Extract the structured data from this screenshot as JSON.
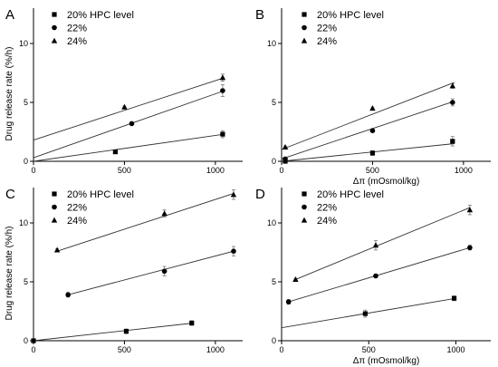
{
  "chart_data": [
    {
      "type": "scatter",
      "panel": "A",
      "xlabel": "",
      "ylabel": "Drug release rate (%/h)",
      "xlim": [
        0,
        1150
      ],
      "ylim": [
        0,
        13
      ],
      "xticks": [
        0,
        500,
        1000
      ],
      "yticks": [
        0,
        5,
        10
      ],
      "legend": "top-left",
      "series": [
        {
          "name": "20% HPC level",
          "marker": "square",
          "x": [
            450,
            1040
          ],
          "y": [
            0.8,
            2.3
          ],
          "err": [
            0.1,
            0.3
          ],
          "fit": [
            0,
            0,
            1050,
            2.3
          ]
        },
        {
          "name": "22%",
          "marker": "circle",
          "x": [
            540,
            1040
          ],
          "y": [
            3.2,
            6.0
          ],
          "err": [
            0.1,
            0.5
          ],
          "fit": [
            0,
            0.3,
            1050,
            6.0
          ]
        },
        {
          "name": "24%",
          "marker": "triangle",
          "x": [
            500,
            1040
          ],
          "y": [
            4.6,
            7.1
          ],
          "err": [
            0.1,
            0.3
          ],
          "fit": [
            0,
            1.8,
            1050,
            7.1
          ]
        }
      ]
    },
    {
      "type": "scatter",
      "panel": "B",
      "xlabel": "Δπ (mOsmol/kg)",
      "ylabel": "",
      "xlim": [
        0,
        1150
      ],
      "ylim": [
        0,
        13
      ],
      "xticks": [
        0,
        500,
        1000
      ],
      "yticks": [
        0,
        5,
        10
      ],
      "legend": "top-left",
      "series": [
        {
          "name": "20% HPC level",
          "marker": "square",
          "x": [
            20,
            500,
            940
          ],
          "y": [
            0.0,
            0.7,
            1.7
          ],
          "err": [
            0.05,
            0.2,
            0.4
          ],
          "fit": [
            0,
            0,
            950,
            1.5
          ]
        },
        {
          "name": "22%",
          "marker": "circle",
          "x": [
            20,
            500,
            940
          ],
          "y": [
            0.2,
            2.6,
            5.0
          ],
          "err": [
            0.05,
            0.1,
            0.3
          ],
          "fit": [
            0,
            0.2,
            950,
            5.1
          ]
        },
        {
          "name": "24%",
          "marker": "triangle",
          "x": [
            20,
            500,
            940
          ],
          "y": [
            1.2,
            4.5,
            6.4
          ],
          "err": [
            0.1,
            0.1,
            0.2
          ],
          "fit": [
            0,
            1.0,
            950,
            6.7
          ]
        }
      ]
    },
    {
      "type": "scatter",
      "panel": "C",
      "xlabel": "",
      "ylabel": "Drug release rate (%/h)",
      "xlim": [
        0,
        1150
      ],
      "ylim": [
        0,
        13
      ],
      "xticks": [
        0,
        500,
        1000
      ],
      "yticks": [
        0,
        5,
        10
      ],
      "legend": "top-left",
      "series": [
        {
          "name": "20% HPC level",
          "marker": "square",
          "x": [
            0,
            510,
            870
          ],
          "y": [
            0.0,
            0.8,
            1.5
          ],
          "err": [
            0.05,
            0.2,
            0.2
          ],
          "fit": [
            0,
            0,
            880,
            1.5
          ]
        },
        {
          "name": "22%",
          "marker": "circle",
          "x": [
            190,
            720,
            1100
          ],
          "y": [
            3.9,
            5.9,
            7.6
          ],
          "err": [
            0.2,
            0.4,
            0.4
          ],
          "fit": [
            190,
            3.9,
            1100,
            7.6
          ]
        },
        {
          "name": "24%",
          "marker": "triangle",
          "x": [
            130,
            720,
            1100
          ],
          "y": [
            7.7,
            10.8,
            12.4
          ],
          "err": [
            0.1,
            0.3,
            0.4
          ],
          "fit": [
            130,
            7.6,
            1100,
            12.5
          ]
        }
      ]
    },
    {
      "type": "scatter",
      "panel": "D",
      "xlabel": "Δπ (mOsmol/kg)",
      "ylabel": "",
      "xlim": [
        0,
        1200
      ],
      "ylim": [
        0,
        13
      ],
      "xticks": [
        0,
        500,
        1000
      ],
      "yticks": [
        0,
        5,
        10
      ],
      "legend": "top-left",
      "series": [
        {
          "name": "20% HPC level",
          "marker": "square",
          "x": [
            480,
            990
          ],
          "y": [
            2.3,
            3.6
          ],
          "err": [
            0.3,
            0.2
          ],
          "fit": [
            0,
            1.1,
            1000,
            3.6
          ]
        },
        {
          "name": "22%",
          "marker": "circle",
          "x": [
            40,
            540,
            1080
          ],
          "y": [
            3.3,
            5.5,
            7.9
          ],
          "err": [
            0.2,
            0.1,
            0.2
          ],
          "fit": [
            40,
            3.3,
            1080,
            7.9
          ]
        },
        {
          "name": "24%",
          "marker": "triangle",
          "x": [
            80,
            540,
            1080
          ],
          "y": [
            5.2,
            8.1,
            11.1
          ],
          "err": [
            0.1,
            0.4,
            0.4
          ],
          "fit": [
            80,
            5.2,
            1080,
            11.3
          ]
        }
      ]
    }
  ]
}
